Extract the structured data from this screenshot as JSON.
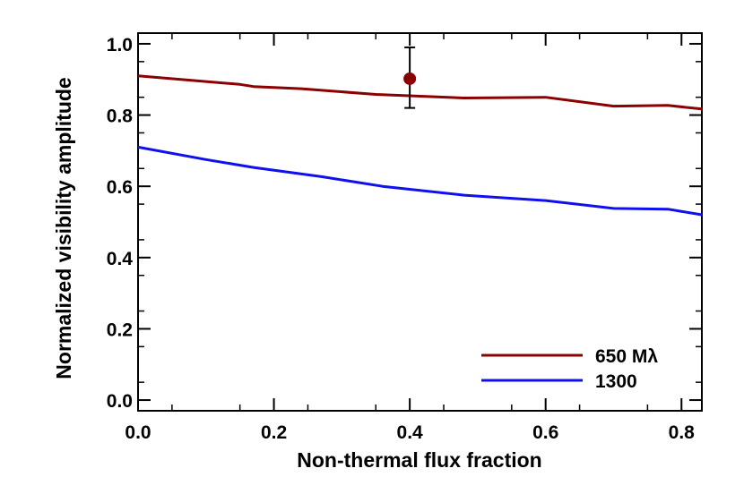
{
  "chart_data": {
    "type": "line",
    "title": "",
    "xlabel": "Non-thermal flux fraction",
    "ylabel": "Normalized visibility amplitude",
    "xlim": [
      0.0,
      0.83
    ],
    "ylim": [
      -0.03,
      1.03
    ],
    "xticks": [
      "0.0",
      "0.2",
      "0.4",
      "0.6",
      "0.8"
    ],
    "yticks": [
      "0.0",
      "0.2",
      "0.4",
      "0.6",
      "0.8",
      "1.0"
    ],
    "grid": false,
    "legend_position": "bottom-right",
    "series": [
      {
        "name": "650 Mλ",
        "color": "#8b0000",
        "x": [
          0.0,
          0.15,
          0.17,
          0.24,
          0.35,
          0.48,
          0.6,
          0.7,
          0.78,
          0.83
        ],
        "y": [
          0.91,
          0.886,
          0.88,
          0.874,
          0.858,
          0.848,
          0.85,
          0.825,
          0.827,
          0.817
        ]
      },
      {
        "name": "1300",
        "color": "#1010ee",
        "x": [
          0.0,
          0.1,
          0.17,
          0.27,
          0.36,
          0.48,
          0.6,
          0.7,
          0.78,
          0.83
        ],
        "y": [
          0.71,
          0.675,
          0.653,
          0.627,
          0.6,
          0.575,
          0.56,
          0.538,
          0.536,
          0.52
        ]
      }
    ],
    "points": [
      {
        "x": 0.4,
        "y": 0.902,
        "yerr_low": 0.82,
        "yerr_high": 0.99,
        "color": "#8b0000"
      }
    ]
  }
}
